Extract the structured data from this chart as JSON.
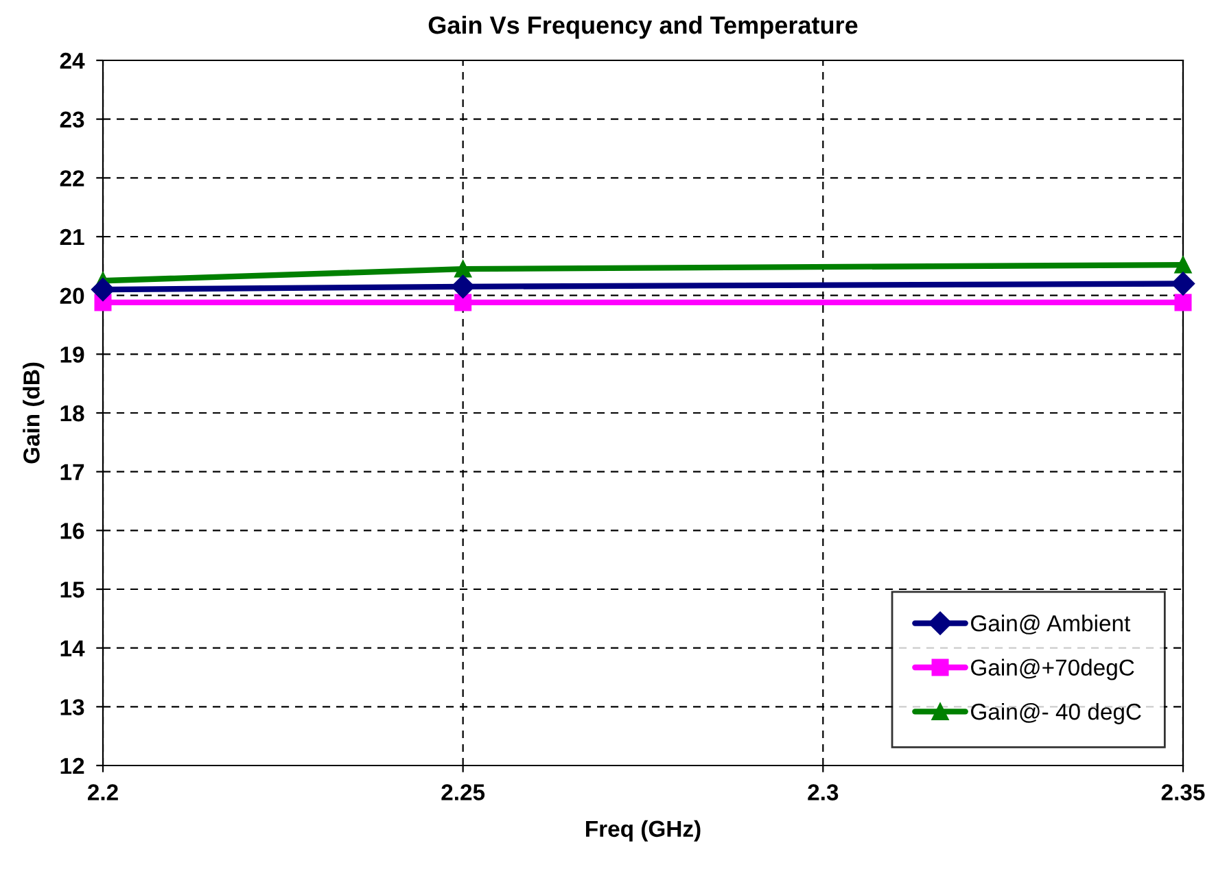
{
  "chart_data": {
    "type": "line",
    "title": "Gain Vs Frequency and Temperature",
    "xlabel": "Freq (GHz)",
    "ylabel": "Gain (dB)",
    "x": [
      2.2,
      2.25,
      2.35
    ],
    "series": [
      {
        "name": "Gain@ Ambient",
        "color": "#000080",
        "marker": "diamond",
        "values": [
          20.1,
          20.15,
          20.2
        ]
      },
      {
        "name": "Gain@+70degC",
        "color": "#ff00ff",
        "marker": "square",
        "values": [
          19.88,
          19.88,
          19.88
        ]
      },
      {
        "name": "Gain@- 40 degC",
        "color": "#008000",
        "marker": "triangle",
        "values": [
          20.25,
          20.45,
          20.52
        ]
      }
    ],
    "xlim": [
      2.2,
      2.35
    ],
    "xticks": [
      2.2,
      2.25,
      2.3,
      2.35
    ],
    "ylim": [
      12,
      24
    ],
    "yticks": [
      12,
      13,
      14,
      15,
      16,
      17,
      18,
      19,
      20,
      21,
      22,
      23,
      24
    ],
    "grid": true,
    "line_style": "solid",
    "legend": "bottom right"
  }
}
